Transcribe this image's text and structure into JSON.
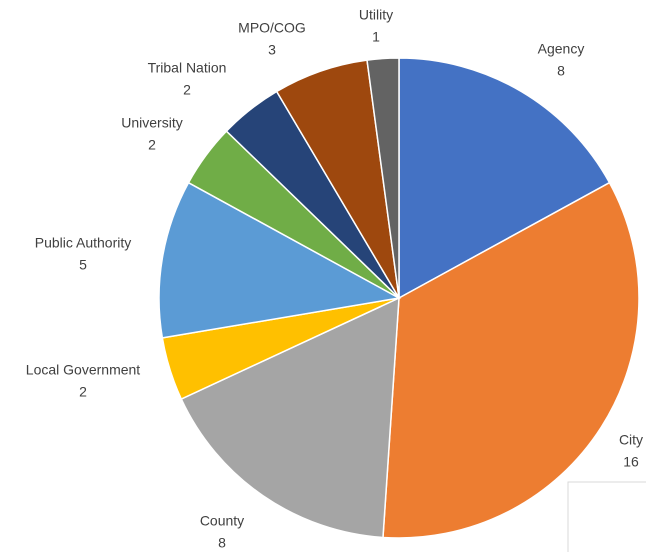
{
  "chart_data": {
    "type": "pie",
    "categories": [
      "Agency",
      "City",
      "County",
      "Local Government",
      "Public Authority",
      "University",
      "Tribal Nation",
      "MPO/COG",
      "Utility"
    ],
    "values": [
      8,
      16,
      8,
      2,
      5,
      2,
      2,
      3,
      1
    ],
    "colors": [
      "#4472c4",
      "#ed7d31",
      "#a5a5a5",
      "#ffc000",
      "#5b9bd5",
      "#70ad47",
      "#264478",
      "#9e480e",
      "#636363"
    ]
  }
}
